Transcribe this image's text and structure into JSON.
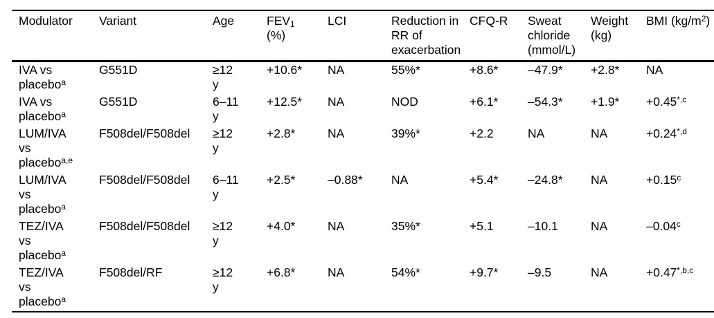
{
  "colors": {
    "text": "#000000",
    "background": "#ffffff",
    "rule": "#000000"
  },
  "table": {
    "header": [
      {
        "key": "modulator",
        "lines": [
          [
            {
              "t": "Modulator"
            }
          ]
        ]
      },
      {
        "key": "variant",
        "lines": [
          [
            {
              "t": "Variant"
            }
          ]
        ]
      },
      {
        "key": "age",
        "lines": [
          [
            {
              "t": "Age"
            }
          ]
        ]
      },
      {
        "key": "fev1",
        "lines": [
          [
            {
              "t": "FEV"
            },
            {
              "t": "1",
              "sub": true
            }
          ],
          [
            {
              "t": "(%)"
            }
          ]
        ]
      },
      {
        "key": "lci",
        "lines": [
          [
            {
              "t": "LCI"
            }
          ]
        ]
      },
      {
        "key": "rr-reduction",
        "lines": [
          [
            {
              "t": "Reduction in"
            }
          ],
          [
            {
              "t": "RR of"
            }
          ],
          [
            {
              "t": "exacerbation"
            }
          ]
        ]
      },
      {
        "key": "cfqr",
        "lines": [
          [
            {
              "t": "CFQ-R"
            }
          ]
        ]
      },
      {
        "key": "sweat-chloride",
        "lines": [
          [
            {
              "t": "Sweat"
            }
          ],
          [
            {
              "t": "chloride"
            }
          ],
          [
            {
              "t": "(mmol/L)"
            }
          ]
        ]
      },
      {
        "key": "weight",
        "lines": [
          [
            {
              "t": "Weight"
            }
          ],
          [
            {
              "t": "(kg)"
            }
          ]
        ]
      },
      {
        "key": "bmi",
        "lines": [
          [
            {
              "t": "BMI (kg/m"
            },
            {
              "t": "2",
              "sup": true
            },
            {
              "t": ")"
            }
          ]
        ]
      }
    ],
    "rows": [
      {
        "cells": [
          [
            [
              {
                "t": "IVA vs"
              }
            ],
            [
              {
                "t": "placebo"
              },
              {
                "t": "a",
                "sup": true
              }
            ]
          ],
          [
            [
              {
                "t": "G551D"
              }
            ]
          ],
          [
            [
              {
                "t": "≥12"
              }
            ],
            [
              {
                "t": "y"
              }
            ]
          ],
          [
            [
              {
                "t": "+10.6*"
              }
            ]
          ],
          [
            [
              {
                "t": "NA"
              }
            ]
          ],
          [
            [
              {
                "t": "55%*"
              }
            ]
          ],
          [
            [
              {
                "t": "+8.6*"
              }
            ]
          ],
          [
            [
              {
                "t": "–47.9*"
              }
            ]
          ],
          [
            [
              {
                "t": "+2.8*"
              }
            ]
          ],
          [
            [
              {
                "t": "NA"
              }
            ]
          ]
        ]
      },
      {
        "cells": [
          [
            [
              {
                "t": "IVA vs"
              }
            ],
            [
              {
                "t": "placebo"
              },
              {
                "t": "a",
                "sup": true
              }
            ]
          ],
          [
            [
              {
                "t": "G551D"
              }
            ]
          ],
          [
            [
              {
                "t": "6–11"
              }
            ],
            [
              {
                "t": "y"
              }
            ]
          ],
          [
            [
              {
                "t": "+12.5*"
              }
            ]
          ],
          [
            [
              {
                "t": "NA"
              }
            ]
          ],
          [
            [
              {
                "t": "NOD"
              }
            ]
          ],
          [
            [
              {
                "t": "+6.1*"
              }
            ]
          ],
          [
            [
              {
                "t": "–54.3*"
              }
            ]
          ],
          [
            [
              {
                "t": "+1.9*"
              }
            ]
          ],
          [
            [
              {
                "t": "+0.45"
              },
              {
                "t": "*,c",
                "sup": true
              }
            ]
          ]
        ]
      },
      {
        "cells": [
          [
            [
              {
                "t": "LUM/IVA"
              }
            ],
            [
              {
                "t": "vs"
              }
            ],
            [
              {
                "t": "placebo"
              },
              {
                "t": "a,e",
                "sup": true
              }
            ]
          ],
          [
            [
              {
                "t": "F508del/F508del"
              }
            ]
          ],
          [
            [
              {
                "t": "≥12"
              }
            ],
            [
              {
                "t": "y"
              }
            ]
          ],
          [
            [
              {
                "t": "+2.8*"
              }
            ]
          ],
          [
            [
              {
                "t": "NA"
              }
            ]
          ],
          [
            [
              {
                "t": "39%*"
              }
            ]
          ],
          [
            [
              {
                "t": "+2.2"
              }
            ]
          ],
          [
            [
              {
                "t": "NA"
              }
            ]
          ],
          [
            [
              {
                "t": "NA"
              }
            ]
          ],
          [
            [
              {
                "t": "+0.24"
              },
              {
                "t": "*,d",
                "sup": true
              }
            ]
          ]
        ]
      },
      {
        "cells": [
          [
            [
              {
                "t": "LUM/IVA"
              }
            ],
            [
              {
                "t": "vs"
              }
            ],
            [
              {
                "t": "placebo"
              },
              {
                "t": "a",
                "sup": true
              }
            ]
          ],
          [
            [
              {
                "t": "F508del/F508del"
              }
            ]
          ],
          [
            [
              {
                "t": "6–11"
              }
            ],
            [
              {
                "t": "y"
              }
            ]
          ],
          [
            [
              {
                "t": "+2.5*"
              }
            ]
          ],
          [
            [
              {
                "t": "–0.88*"
              }
            ]
          ],
          [
            [
              {
                "t": "NA"
              }
            ]
          ],
          [
            [
              {
                "t": "+5.4*"
              }
            ]
          ],
          [
            [
              {
                "t": "–24.8*"
              }
            ]
          ],
          [
            [
              {
                "t": "NA"
              }
            ]
          ],
          [
            [
              {
                "t": "+0.15"
              },
              {
                "t": "c",
                "sup": true
              }
            ]
          ]
        ]
      },
      {
        "cells": [
          [
            [
              {
                "t": "TEZ/IVA"
              }
            ],
            [
              {
                "t": "vs"
              }
            ],
            [
              {
                "t": "placebo"
              },
              {
                "t": "a",
                "sup": true
              }
            ]
          ],
          [
            [
              {
                "t": "F508del/F508del"
              }
            ]
          ],
          [
            [
              {
                "t": "≥12"
              }
            ],
            [
              {
                "t": "y"
              }
            ]
          ],
          [
            [
              {
                "t": "+4.0*"
              }
            ]
          ],
          [
            [
              {
                "t": "NA"
              }
            ]
          ],
          [
            [
              {
                "t": "35%*"
              }
            ]
          ],
          [
            [
              {
                "t": "+5.1"
              }
            ]
          ],
          [
            [
              {
                "t": "–10.1"
              }
            ]
          ],
          [
            [
              {
                "t": "NA"
              }
            ]
          ],
          [
            [
              {
                "t": "–0.04"
              },
              {
                "t": "c",
                "sup": true
              }
            ]
          ]
        ]
      },
      {
        "cells": [
          [
            [
              {
                "t": "TEZ/IVA"
              }
            ],
            [
              {
                "t": "vs"
              }
            ],
            [
              {
                "t": "placebo"
              },
              {
                "t": "a",
                "sup": true
              }
            ]
          ],
          [
            [
              {
                "t": "F508del/RF"
              }
            ]
          ],
          [
            [
              {
                "t": "≥12"
              }
            ],
            [
              {
                "t": "y"
              }
            ]
          ],
          [
            [
              {
                "t": "+6.8*"
              }
            ]
          ],
          [
            [
              {
                "t": "NA"
              }
            ]
          ],
          [
            [
              {
                "t": "54%*"
              }
            ]
          ],
          [
            [
              {
                "t": "+9.7*"
              }
            ]
          ],
          [
            [
              {
                "t": "–9.5"
              }
            ]
          ],
          [
            [
              {
                "t": "NA"
              }
            ]
          ],
          [
            [
              {
                "t": "+0.47"
              },
              {
                "t": "*,b,c",
                "sup": true
              }
            ]
          ]
        ]
      }
    ]
  }
}
